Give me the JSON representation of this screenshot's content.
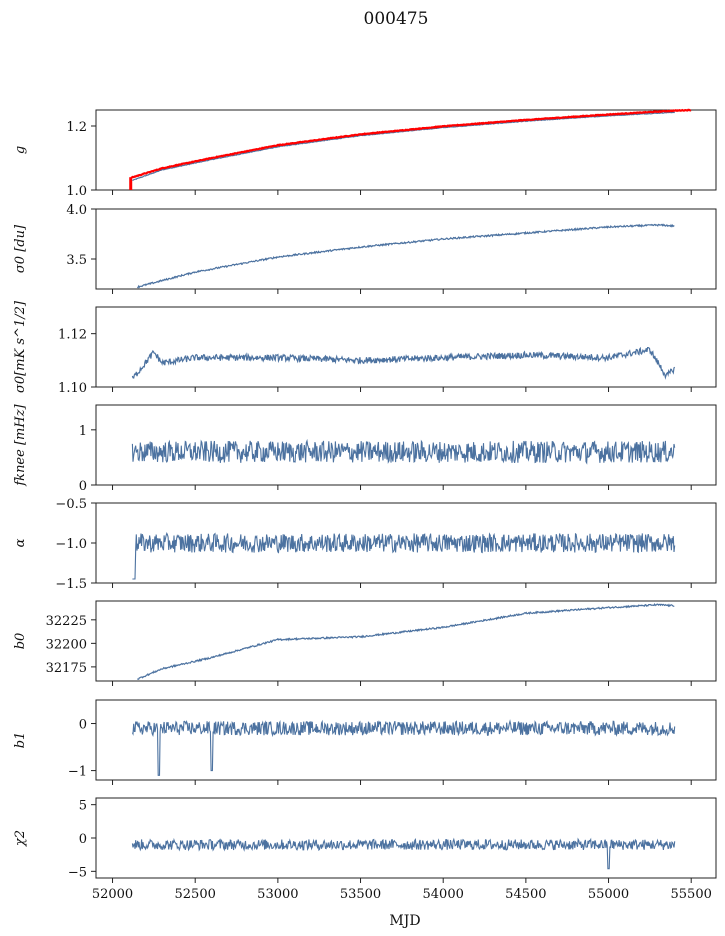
{
  "figure": {
    "title": "000475",
    "xlabel": "MJD",
    "xlim": [
      51900,
      55650
    ],
    "xticks": [
      52000,
      52500,
      53000,
      53500,
      54000,
      54500,
      55000,
      55500
    ],
    "xtick_labels": [
      "52000",
      "52500",
      "53000",
      "53500",
      "54000",
      "54500",
      "55000",
      "55500"
    ],
    "line_color": "#4c72a0",
    "highlight_color": "#ff0000"
  },
  "chart_data": [
    {
      "type": "line",
      "key": "g",
      "ylabel": "g",
      "ylim": [
        1.0,
        1.25
      ],
      "yticks": [
        1.0,
        1.2
      ],
      "ytick_labels": [
        "1.0",
        "1.2"
      ],
      "series": [
        {
          "name": "g",
          "color": "#4c72a0",
          "x": [
            52120,
            52300,
            52600,
            52800,
            53000,
            53500,
            54000,
            54500,
            55000,
            55400
          ],
          "y": [
            1.03,
            1.063,
            1.095,
            1.115,
            1.135,
            1.17,
            1.195,
            1.215,
            1.232,
            1.243
          ]
        },
        {
          "name": "g (flagged)",
          "color": "#ff0000",
          "x": [
            52110,
            52300,
            52600,
            52800,
            53000,
            53500,
            54000,
            54500,
            55000,
            55400,
            55500
          ],
          "y": [
            1.038,
            1.068,
            1.1,
            1.12,
            1.14,
            1.174,
            1.199,
            1.219,
            1.236,
            1.248,
            1.25
          ]
        }
      ],
      "notes": "Red vertical bar at MJD ~52110 spanning g 1.0 to 1.04"
    },
    {
      "type": "line",
      "key": "sigma0_du",
      "ylabel": "σ0 [du]",
      "ylim": [
        3.2,
        4.0
      ],
      "yticks": [
        3.5,
        4.0
      ],
      "ytick_labels": [
        "3.5",
        "4.0"
      ],
      "x": [
        52150,
        52500,
        52800,
        53000,
        53500,
        54000,
        54500,
        55000,
        55300,
        55400
      ],
      "y": [
        3.22,
        3.37,
        3.46,
        3.52,
        3.62,
        3.7,
        3.76,
        3.82,
        3.84,
        3.83
      ]
    },
    {
      "type": "line",
      "key": "sigma0_mK",
      "ylabel": "σ0[mK s^1/2]",
      "ylim": [
        1.1,
        1.13
      ],
      "yticks": [
        1.1,
        1.12
      ],
      "ytick_labels": [
        "1.10",
        "1.12"
      ],
      "x": [
        52120,
        52250,
        52300,
        52500,
        53000,
        53500,
        54000,
        54500,
        55000,
        55250,
        55350,
        55400
      ],
      "y": [
        1.103,
        1.113,
        1.109,
        1.111,
        1.111,
        1.11,
        1.111,
        1.112,
        1.111,
        1.114,
        1.104,
        1.107
      ]
    },
    {
      "type": "line",
      "key": "fknee",
      "ylabel": "fknee [mHz]",
      "ylim": [
        0,
        1.45
      ],
      "yticks": [
        0,
        1
      ],
      "ytick_labels": [
        "0",
        "1"
      ],
      "x_range": [
        52120,
        55400
      ],
      "mean": 0.6,
      "spread": 0.2
    },
    {
      "type": "line",
      "key": "alpha",
      "ylabel": "α",
      "ylim": [
        -1.5,
        -0.5
      ],
      "yticks": [
        -1.5,
        -1.0,
        -0.5
      ],
      "ytick_labels": [
        "−1.5",
        "−1.0",
        "−0.5"
      ],
      "x_range": [
        52120,
        55400
      ],
      "mean": -1.0,
      "spread": 0.12
    },
    {
      "type": "line",
      "key": "b0",
      "ylabel": "b0",
      "ylim": [
        32160,
        32245
      ],
      "yticks": [
        32175,
        32200,
        32225
      ],
      "ytick_labels": [
        "32175",
        "32200",
        "32225"
      ],
      "x": [
        52150,
        52300,
        52600,
        53000,
        53500,
        54000,
        54500,
        55000,
        55300,
        55400
      ],
      "y": [
        32162,
        32173,
        32185,
        32204,
        32207,
        32217,
        32232,
        32238,
        32241,
        32240
      ]
    },
    {
      "type": "line",
      "key": "b1",
      "ylabel": "b1",
      "ylim": [
        -1.2,
        0.5
      ],
      "yticks": [
        -1,
        0
      ],
      "ytick_labels": [
        "−1",
        "0"
      ],
      "x_range": [
        52120,
        55400
      ],
      "mean": -0.1,
      "spread": 0.15
    },
    {
      "type": "line",
      "key": "chi2",
      "ylabel": "χ2",
      "ylim": [
        -6,
        6
      ],
      "yticks": [
        -5,
        0,
        5
      ],
      "ytick_labels": [
        "−5",
        "0",
        "5"
      ],
      "x_range": [
        52120,
        55400
      ],
      "mean": -1.0,
      "spread": 0.8
    }
  ]
}
